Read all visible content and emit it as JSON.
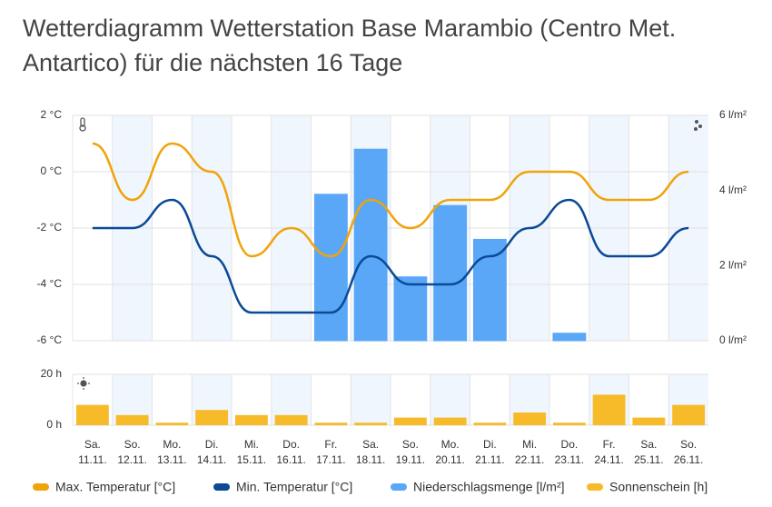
{
  "chart_data": [
    {
      "type": "combo",
      "title": "Wetterdiagramm Wetterstation Base Marambio (Centro Met. Antartico) für die nächsten 16 Tage",
      "ylim": [
        -6,
        2
      ],
      "yticks": [
        {
          "value": -6,
          "label": "-6 °C"
        },
        {
          "value": -4,
          "label": "-4 °C"
        },
        {
          "value": -2,
          "label": "-2 °C"
        },
        {
          "value": 0,
          "label": "0 °C"
        },
        {
          "value": 2,
          "label": "2 °C"
        }
      ],
      "y2lim": [
        0,
        6
      ],
      "y2ticks": [
        {
          "value": 0,
          "label": "0 l/m²"
        },
        {
          "value": 2,
          "label": "2 l/m²"
        },
        {
          "value": 4,
          "label": "4 l/m²"
        },
        {
          "value": 6,
          "label": "6 l/m²"
        }
      ],
      "grid": true,
      "series": [
        {
          "name": "Max. Temperatur [°C]",
          "type": "line",
          "color": "#f0a30a",
          "values": [
            1,
            -1,
            1,
            0,
            -3,
            -2,
            -3,
            -1,
            -2,
            -1,
            -1,
            0,
            0,
            -1,
            -1,
            0
          ]
        },
        {
          "name": "Min. Temperatur [°C]",
          "type": "line",
          "color": "#0b4a96",
          "values": [
            -2,
            -2,
            -1,
            -3,
            -5,
            -5,
            -5,
            -3,
            -4,
            -4,
            -3,
            -2,
            -1,
            -3,
            -3,
            -2
          ]
        },
        {
          "name": "Niederschlagsmenge [l/m²]",
          "type": "bar",
          "axis": "y2",
          "color": "#5aa7f7",
          "values": [
            0,
            0,
            0,
            0,
            0,
            0,
            3.9,
            5.1,
            1.7,
            3.6,
            2.7,
            0,
            0.2,
            0,
            0,
            0
          ]
        }
      ]
    },
    {
      "type": "bar",
      "categories": [
        "Sa.",
        "So.",
        "Mo.",
        "Di.",
        "Mi.",
        "Do.",
        "Fr.",
        "Sa.",
        "So.",
        "Mo.",
        "Di.",
        "Mi.",
        "Do.",
        "Fr.",
        "Sa.",
        "So."
      ],
      "dates": [
        "11.11.",
        "12.11.",
        "13.11.",
        "14.11.",
        "15.11.",
        "16.11.",
        "17.11.",
        "18.11.",
        "19.11.",
        "20.11.",
        "21.11.",
        "22.11.",
        "23.11.",
        "24.11.",
        "25.11.",
        "26.11."
      ],
      "ylim": [
        0,
        20
      ],
      "yticks": [
        {
          "value": 0,
          "label": "0 h"
        },
        {
          "value": 20,
          "label": "20 h"
        }
      ],
      "grid": true,
      "series": [
        {
          "name": "Sonnenschein [h]",
          "color": "#f7bb2a",
          "values": [
            8,
            4,
            1,
            6,
            4,
            4,
            1,
            1,
            3,
            3,
            1,
            5,
            1,
            12,
            3,
            8
          ]
        }
      ]
    }
  ]
}
